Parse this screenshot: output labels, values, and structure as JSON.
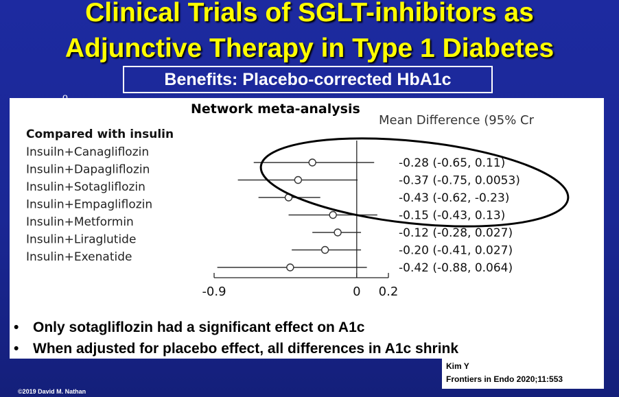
{
  "title": {
    "line1": "Clinical Trials of SGLT-inhibitors as",
    "line2": "Adjunctive Therapy in Type 1 Diabetes"
  },
  "subtitle": "Benefits: Placebo-corrected HbA1c",
  "stray_mark": "o",
  "plot": {
    "heading": "Network meta-analysis",
    "column_header": "Mean Difference (95% Cr",
    "group_label": "Compared with insulin",
    "chart_data": {
      "type": "forest",
      "xlim": [
        -0.9,
        0.2
      ],
      "ticks": [
        -0.9,
        0,
        0.2
      ],
      "tick_labels": [
        "-0.9",
        "0",
        "0.2"
      ],
      "rows": [
        {
          "label": "Insuiln+Canagliflozin",
          "estimate": -0.28,
          "lower": -0.65,
          "upper": 0.11,
          "text": "-0.28 (-0.65, 0.11)"
        },
        {
          "label": "Insulin+Dapagliflozin",
          "estimate": -0.37,
          "lower": -0.75,
          "upper": 0.0053,
          "text": "-0.37 (-0.75, 0.0053)"
        },
        {
          "label": "Insulin+Sotagliflozin",
          "estimate": -0.43,
          "lower": -0.62,
          "upper": -0.23,
          "text": "-0.43 (-0.62, -0.23)"
        },
        {
          "label": "Insulin+Empagliflozin",
          "estimate": -0.15,
          "lower": -0.43,
          "upper": 0.13,
          "text": "-0.15 (-0.43, 0.13)"
        },
        {
          "label": "Insulin+Metformin",
          "estimate": -0.12,
          "lower": -0.28,
          "upper": 0.027,
          "text": "-0.12 (-0.28, 0.027)"
        },
        {
          "label": "Insulin+Liraglutide",
          "estimate": -0.2,
          "lower": -0.41,
          "upper": 0.027,
          "text": "-0.20 (-0.41, 0.027)"
        },
        {
          "label": "Insulin+Exenatide",
          "estimate": -0.42,
          "lower": -0.88,
          "upper": 0.064,
          "text": "-0.42 (-0.88, 0.064)"
        }
      ]
    }
  },
  "bullets": [
    "Only sotagliflozin had a significant effect on A1c",
    "When adjusted for placebo effect, all differences in A1c shrink"
  ],
  "bullet_symbol": "•",
  "citation": {
    "author": "Kim Y",
    "journal": "Frontiers in Endo 2020;11:553"
  },
  "copyright": "©2019 David M. Nathan",
  "colors": {
    "background": "#1d2aa0",
    "title": "#ffff00",
    "text": "#000000",
    "highlight_ellipse": "#000000"
  }
}
